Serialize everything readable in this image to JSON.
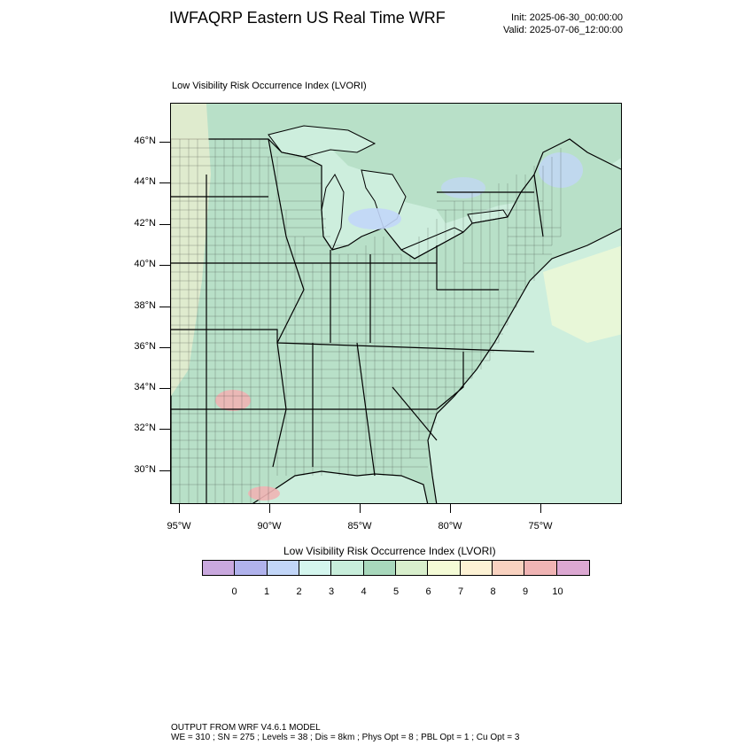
{
  "header": {
    "title": "IWFAQRP Eastern US Real Time WRF",
    "init": "Init: 2025-06-30_00:00:00",
    "valid": "Valid: 2025-07-06_12:00:00"
  },
  "map": {
    "subtitle": "Low Visibility Risk Occurrence Index   (LVORI)",
    "lat_labels": [
      "46°N",
      "44°N",
      "42°N",
      "40°N",
      "38°N",
      "36°N",
      "34°N",
      "32°N",
      "30°N"
    ],
    "lon_labels": [
      "95°W",
      "90°W",
      "85°W",
      "80°W",
      "75°W"
    ],
    "ocean_color": "#cdeedd",
    "land_color": "#b8e0c8"
  },
  "colorbar": {
    "title": "Low Visibility Risk Occurrence Index  (LVORI)",
    "colors": [
      "#c9a8de",
      "#b0b2ec",
      "#c2d6f8",
      "#d4f6ee",
      "#c8eedb",
      "#a8d8bc",
      "#d8efcc",
      "#f4fbd6",
      "#fdf2d4",
      "#f9d2c0",
      "#f0b4b4",
      "#dca8d2"
    ],
    "labels": [
      "0",
      "1",
      "2",
      "3",
      "4",
      "5",
      "6",
      "7",
      "8",
      "9",
      "10"
    ]
  },
  "footer": {
    "line1": "OUTPUT FROM WRF V4.6.1 MODEL",
    "line2": "WE = 310 ; SN = 275 ; Levels = 38 ; Dis = 8km ; Phys Opt = 8 ; PBL Opt = 1 ; Cu Opt = 3"
  }
}
